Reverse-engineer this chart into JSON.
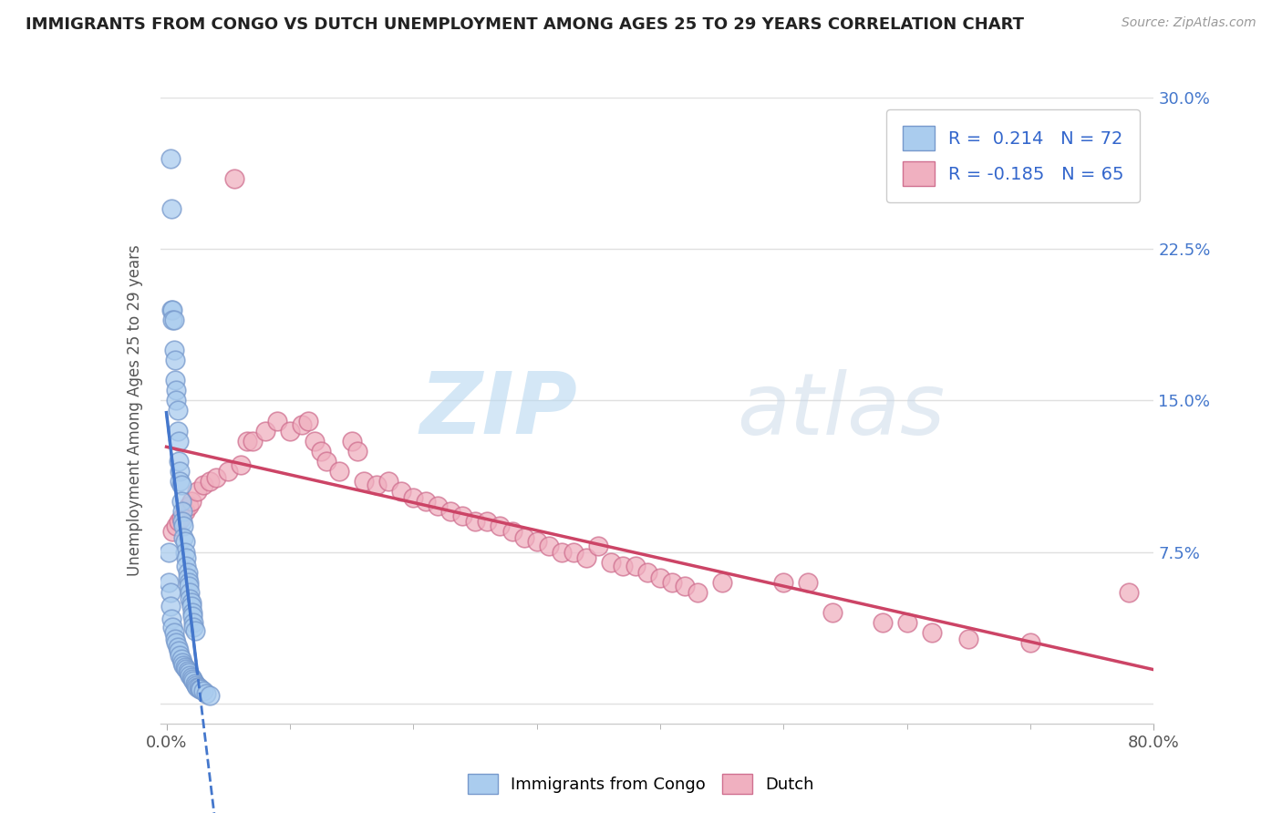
{
  "title": "IMMIGRANTS FROM CONGO VS DUTCH UNEMPLOYMENT AMONG AGES 25 TO 29 YEARS CORRELATION CHART",
  "source": "Source: ZipAtlas.com",
  "ylabel": "Unemployment Among Ages 25 to 29 years",
  "xlim": [
    -0.005,
    0.8
  ],
  "ylim": [
    -0.01,
    0.3
  ],
  "xtick_positions": [
    0.0,
    0.8
  ],
  "xtick_labels": [
    "0.0%",
    "80.0%"
  ],
  "yticks": [
    0.0,
    0.075,
    0.15,
    0.225,
    0.3
  ],
  "ytick_labels": [
    "",
    "7.5%",
    "15.0%",
    "22.5%",
    "30.0%"
  ],
  "blue_color": "#aaccee",
  "blue_edge_color": "#7799cc",
  "pink_color": "#f0b0c0",
  "pink_edge_color": "#d07090",
  "blue_line_color": "#4477cc",
  "pink_line_color": "#cc4466",
  "R_blue": 0.214,
  "N_blue": 72,
  "R_pink": -0.185,
  "N_pink": 65,
  "blue_scatter_x": [
    0.003,
    0.004,
    0.004,
    0.005,
    0.005,
    0.006,
    0.006,
    0.007,
    0.007,
    0.008,
    0.008,
    0.009,
    0.009,
    0.01,
    0.01,
    0.011,
    0.011,
    0.012,
    0.012,
    0.013,
    0.013,
    0.014,
    0.014,
    0.015,
    0.015,
    0.016,
    0.016,
    0.017,
    0.017,
    0.018,
    0.018,
    0.019,
    0.019,
    0.02,
    0.02,
    0.021,
    0.021,
    0.022,
    0.022,
    0.023,
    0.002,
    0.002,
    0.003,
    0.003,
    0.004,
    0.005,
    0.006,
    0.007,
    0.008,
    0.009,
    0.01,
    0.011,
    0.012,
    0.013,
    0.014,
    0.015,
    0.016,
    0.017,
    0.018,
    0.019,
    0.02,
    0.021,
    0.022,
    0.023,
    0.024,
    0.025,
    0.026,
    0.027,
    0.028,
    0.03,
    0.032,
    0.035
  ],
  "blue_scatter_y": [
    0.27,
    0.245,
    0.195,
    0.195,
    0.19,
    0.19,
    0.175,
    0.17,
    0.16,
    0.155,
    0.15,
    0.145,
    0.135,
    0.13,
    0.12,
    0.115,
    0.11,
    0.108,
    0.1,
    0.095,
    0.09,
    0.088,
    0.082,
    0.08,
    0.075,
    0.072,
    0.068,
    0.065,
    0.062,
    0.06,
    0.058,
    0.055,
    0.052,
    0.05,
    0.048,
    0.045,
    0.043,
    0.04,
    0.038,
    0.036,
    0.075,
    0.06,
    0.055,
    0.048,
    0.042,
    0.038,
    0.035,
    0.032,
    0.03,
    0.028,
    0.026,
    0.024,
    0.022,
    0.02,
    0.019,
    0.018,
    0.017,
    0.016,
    0.015,
    0.014,
    0.013,
    0.012,
    0.011,
    0.01,
    0.009,
    0.008,
    0.008,
    0.007,
    0.007,
    0.006,
    0.005,
    0.004
  ],
  "pink_scatter_x": [
    0.005,
    0.008,
    0.01,
    0.012,
    0.015,
    0.018,
    0.02,
    0.025,
    0.03,
    0.035,
    0.04,
    0.05,
    0.055,
    0.06,
    0.065,
    0.07,
    0.08,
    0.09,
    0.1,
    0.11,
    0.115,
    0.12,
    0.125,
    0.13,
    0.14,
    0.15,
    0.155,
    0.16,
    0.17,
    0.18,
    0.19,
    0.2,
    0.21,
    0.22,
    0.23,
    0.24,
    0.25,
    0.26,
    0.27,
    0.28,
    0.29,
    0.3,
    0.31,
    0.32,
    0.33,
    0.34,
    0.35,
    0.36,
    0.37,
    0.38,
    0.39,
    0.4,
    0.41,
    0.42,
    0.43,
    0.45,
    0.5,
    0.52,
    0.54,
    0.58,
    0.6,
    0.62,
    0.65,
    0.7,
    0.78
  ],
  "pink_scatter_y": [
    0.085,
    0.088,
    0.09,
    0.092,
    0.095,
    0.098,
    0.1,
    0.105,
    0.108,
    0.11,
    0.112,
    0.115,
    0.26,
    0.118,
    0.13,
    0.13,
    0.135,
    0.14,
    0.135,
    0.138,
    0.14,
    0.13,
    0.125,
    0.12,
    0.115,
    0.13,
    0.125,
    0.11,
    0.108,
    0.11,
    0.105,
    0.102,
    0.1,
    0.098,
    0.095,
    0.093,
    0.09,
    0.09,
    0.088,
    0.085,
    0.082,
    0.08,
    0.078,
    0.075,
    0.075,
    0.072,
    0.078,
    0.07,
    0.068,
    0.068,
    0.065,
    0.062,
    0.06,
    0.058,
    0.055,
    0.06,
    0.06,
    0.06,
    0.045,
    0.04,
    0.04,
    0.035,
    0.032,
    0.03,
    0.055
  ],
  "watermark_zip": "ZIP",
  "watermark_atlas": "atlas",
  "background_color": "#ffffff",
  "grid_color": "#e0e0e0",
  "title_color": "#222222",
  "axis_label_color": "#555555",
  "tick_label_color_right": "#4477cc",
  "tick_label_color_bottom": "#555555"
}
